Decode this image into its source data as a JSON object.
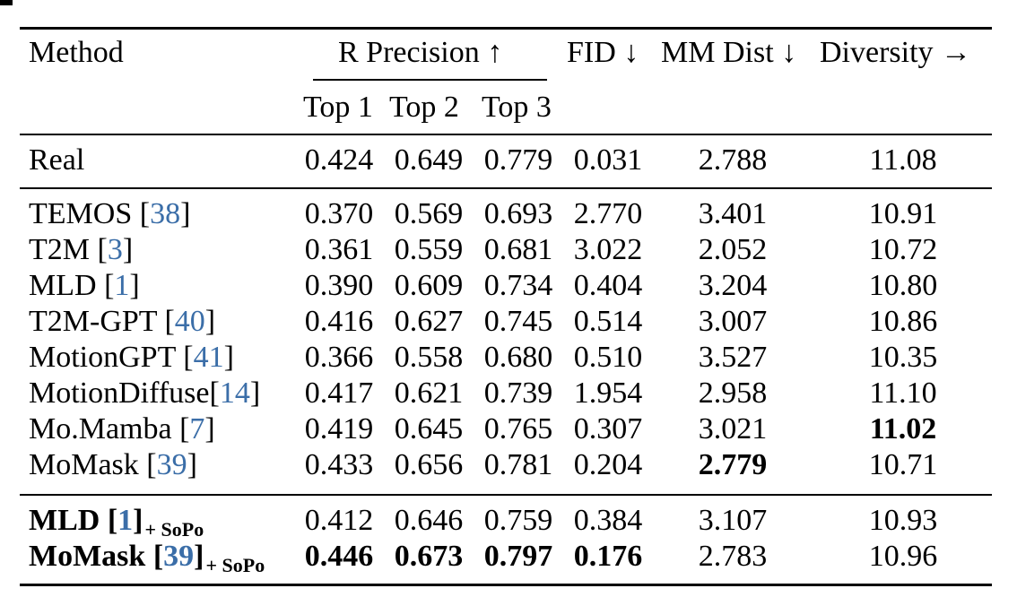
{
  "header": {
    "method": "Method",
    "r_precision": "R Precision ↑",
    "fid": "FID ↓",
    "mm_dist": "MM Dist ↓",
    "diversity": "Diversity →",
    "top1": "Top 1",
    "top2": "Top 2",
    "top3": "Top 3"
  },
  "real": {
    "name": "Real",
    "top1": "0.424",
    "top2": "0.649",
    "top3": "0.779",
    "fid": "0.031",
    "mm": "2.788",
    "div": "11.08"
  },
  "rows": [
    {
      "name": "TEMOS ",
      "cite": "38",
      "top1": "0.370",
      "top2": "0.569",
      "top3": "0.693",
      "fid": "2.770",
      "mm": "3.401",
      "div": "10.91"
    },
    {
      "name": "T2M ",
      "cite": "3",
      "top1": "0.361",
      "top2": "0.559",
      "top3": "0.681",
      "fid": "3.022",
      "mm": "2.052",
      "div": "10.72"
    },
    {
      "name": "MLD ",
      "cite": "1",
      "top1": "0.390",
      "top2": "0.609",
      "top3": "0.734",
      "fid": "0.404",
      "mm": "3.204",
      "div": "10.80"
    },
    {
      "name": "T2M-GPT ",
      "cite": "40",
      "top1": "0.416",
      "top2": "0.627",
      "top3": "0.745",
      "fid": "0.514",
      "mm": "3.007",
      "div": "10.86"
    },
    {
      "name": "MotionGPT ",
      "cite": "41",
      "top1": "0.366",
      "top2": "0.558",
      "top3": "0.680",
      "fid": "0.510",
      "mm": "3.527",
      "div": "10.35"
    },
    {
      "name": "MotionDiffuse",
      "cite": "14",
      "top1": "0.417",
      "top2": "0.621",
      "top3": "0.739",
      "fid": "1.954",
      "mm": "2.958",
      "div": "11.10"
    },
    {
      "name": "Mo.Mamba ",
      "cite": "7",
      "top1": "0.419",
      "top2": "0.645",
      "top3": "0.765",
      "fid": "0.307",
      "mm": "3.021",
      "div": "11.02"
    },
    {
      "name": "MoMask ",
      "cite": "39",
      "top1": "0.433",
      "top2": "0.656",
      "top3": "0.781",
      "fid": "0.204",
      "mm": "2.779",
      "div": "10.71"
    }
  ],
  "ours": [
    {
      "name": "MLD ",
      "cite": "1",
      "suffix": "+ SoPo",
      "top1": "0.412",
      "top2": "0.646",
      "top3": "0.759",
      "fid": "0.384",
      "mm": "3.107",
      "div": "10.93"
    },
    {
      "name": "MoMask ",
      "cite": "39",
      "suffix": "+ SoPo",
      "top1": "0.446",
      "top2": "0.673",
      "top3": "0.797",
      "fid": "0.176",
      "mm": "2.783",
      "div": "10.96"
    }
  ]
}
